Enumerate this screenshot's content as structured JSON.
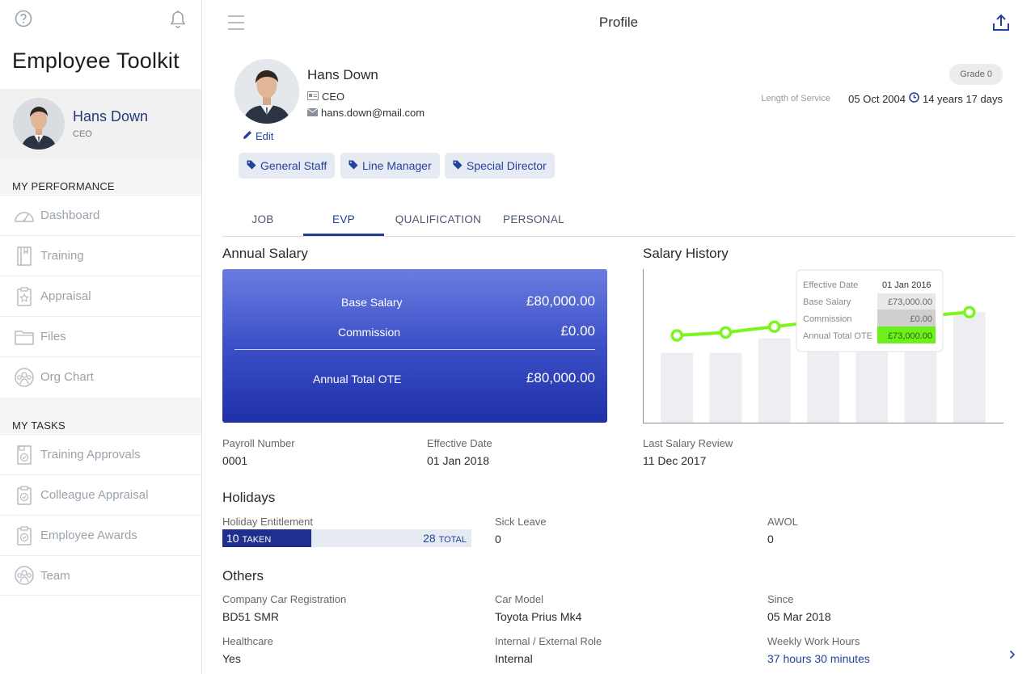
{
  "app": {
    "title": "Employee Toolkit"
  },
  "sidebar": {
    "user": {
      "name": "Hans Down",
      "role": "CEO"
    },
    "my_performance": {
      "title": "MY PERFORMANCE",
      "items": [
        {
          "label": "Dashboard",
          "icon": "dashboard-icon"
        },
        {
          "label": "Training",
          "icon": "training-icon"
        },
        {
          "label": "Appraisal",
          "icon": "appraisal-icon"
        },
        {
          "label": "Files",
          "icon": "files-icon"
        },
        {
          "label": "Org Chart",
          "icon": "org-chart-icon"
        }
      ]
    },
    "my_tasks": {
      "title": "MY TASKS",
      "items": [
        {
          "label": "Training Approvals",
          "icon": "training-approvals-icon"
        },
        {
          "label": "Colleague Appraisal",
          "icon": "colleague-appraisal-icon"
        },
        {
          "label": "Employee Awards",
          "icon": "employee-awards-icon"
        },
        {
          "label": "Team",
          "icon": "team-icon"
        }
      ]
    }
  },
  "header": {
    "title": "Profile"
  },
  "profile": {
    "name": "Hans Down",
    "role": "CEO",
    "email": "hans.down@mail.com",
    "edit_label": "Edit",
    "grade": "Grade 0",
    "length_of_service_label": "Length of Service",
    "start_date": "05 Oct 2004",
    "service_duration": "14 years 17 days",
    "tags": [
      "General Staff",
      "Line Manager",
      "Special Director"
    ]
  },
  "tabs": [
    "JOB",
    "EVP",
    "QUALIFICATION",
    "PERSONAL"
  ],
  "annual_salary": {
    "title": "Annual Salary",
    "base_salary_label": "Base Salary",
    "base_salary_value": "£80,000.00",
    "commission_label": "Commission",
    "commission_value": "£0.00",
    "total_label": "Annual Total OTE",
    "total_value": "£80,000.00"
  },
  "salary_history": {
    "title": "Salary History",
    "tooltip": {
      "effective_date_label": "Effective Date",
      "effective_date_value": "01 Jan 2016",
      "base_salary_label": "Base Salary",
      "base_salary_value": "£73,000.00",
      "commission_label": "Commission",
      "commission_value": "£0.00",
      "total_label": "Annual Total OTE",
      "total_value": "£73,000.00"
    }
  },
  "chart_data": {
    "type": "line",
    "series": [
      {
        "values": [
          60,
          62,
          66,
          70,
          73,
          73,
          76
        ]
      }
    ],
    "bars": [
      48,
      48,
      58,
      65,
      72,
      72,
      76
    ],
    "ylim": [
      0,
      100
    ],
    "highlight_index": 4,
    "colors": {
      "line": "#7cf51f",
      "bar": "#eceef1"
    }
  },
  "payroll": {
    "payroll_number_label": "Payroll Number",
    "payroll_number_value": "0001",
    "effective_date_label": "Effective Date",
    "effective_date_value": "01 Jan 2018",
    "last_review_label": "Last Salary Review",
    "last_review_value": "11 Dec 2017"
  },
  "holidays": {
    "title": "Holidays",
    "entitlement_label": "Holiday Entitlement",
    "taken": "10",
    "taken_suffix": "TAKEN",
    "total": "28",
    "total_suffix": "TOTAL",
    "taken_fraction": 0.357,
    "sick_leave_label": "Sick Leave",
    "sick_leave_value": "0",
    "awol_label": "AWOL",
    "awol_value": "0"
  },
  "others": {
    "title": "Others",
    "car_reg_label": "Company Car Registration",
    "car_reg_value": "BD51 SMR",
    "car_model_label": "Car Model",
    "car_model_value": "Toyota Prius Mk4",
    "since_label": "Since",
    "since_value": "05 Mar 2018",
    "healthcare_label": "Healthcare",
    "healthcare_value": "Yes",
    "role_label": "Internal / External Role",
    "role_value": "Internal",
    "hours_label": "Weekly Work Hours",
    "hours_value": "37 hours 30 minutes"
  },
  "colors": {
    "accent": "#24429a",
    "dark_accent": "#1f2f8f",
    "line": "#7cf51f"
  }
}
